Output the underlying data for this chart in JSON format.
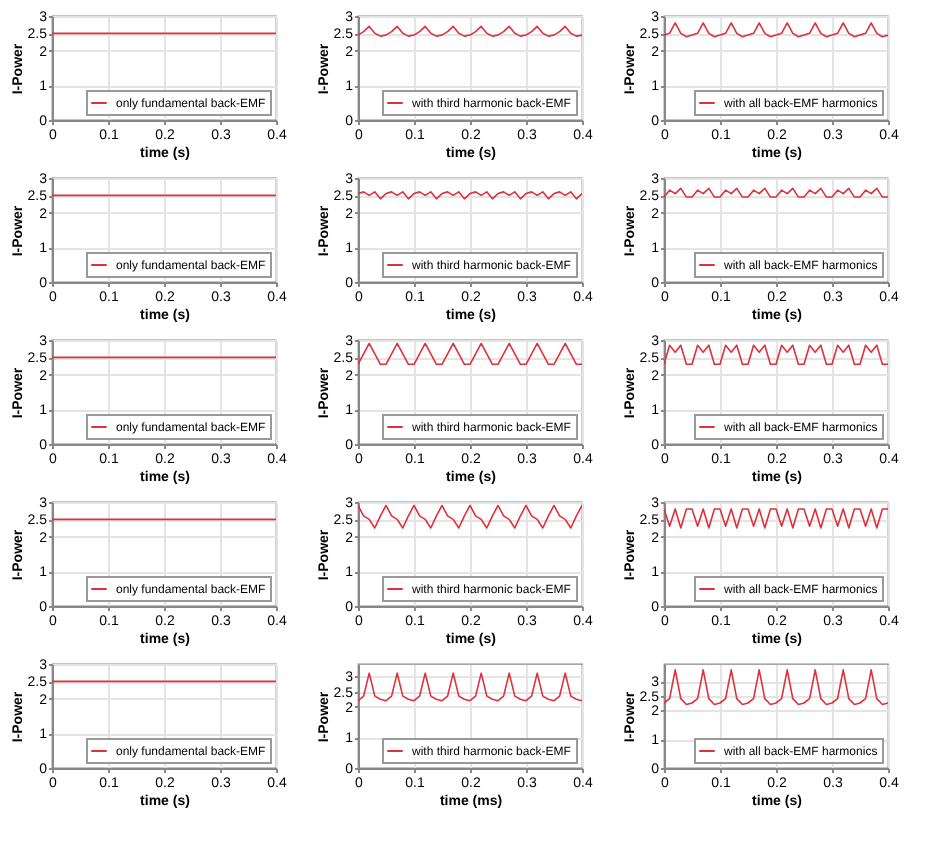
{
  "chart_data": [
    {
      "type": "line",
      "xlabel": "time (s)",
      "ylabel": "I-Power",
      "x": [
        0,
        0.4
      ],
      "xlim": [
        0,
        0.4
      ],
      "ylim": [
        0,
        3
      ],
      "xticks": [
        0,
        0.1,
        0.2,
        0.3,
        0.4
      ],
      "yticks": [
        0,
        1,
        2,
        2.5,
        3
      ],
      "grid": true,
      "legend": "bottom right",
      "series": [
        {
          "name": "only fundamental back-EMF",
          "color": "#e0303a",
          "values": [
            2.5,
            2.5
          ]
        }
      ]
    },
    {
      "type": "line",
      "xlabel": "time (s)",
      "ylabel": "I-Power",
      "x": [
        0,
        0.01,
        0.02,
        0.03,
        0.04,
        0.05,
        0.06,
        0.07,
        0.08,
        0.09,
        0.1,
        0.11,
        0.12,
        0.13,
        0.14,
        0.15,
        0.16,
        0.17,
        0.18,
        0.19,
        0.2,
        0.21,
        0.22,
        0.23,
        0.24,
        0.25,
        0.26,
        0.27,
        0.28,
        0.29,
        0.3,
        0.31,
        0.32,
        0.33,
        0.34,
        0.35,
        0.36,
        0.37,
        0.38,
        0.39,
        0.4
      ],
      "xlim": [
        0,
        0.4
      ],
      "ylim": [
        0,
        3
      ],
      "xticks": [
        0,
        0.1,
        0.2,
        0.3,
        0.4
      ],
      "yticks": [
        0,
        1,
        2,
        2.5,
        3
      ],
      "grid": true,
      "legend": "bottom right",
      "series": [
        {
          "name": "with third harmonic back-EMF",
          "color": "#e0303a",
          "values": [
            2.45,
            2.55,
            2.7,
            2.5,
            2.42,
            2.45,
            2.55,
            2.7,
            2.5,
            2.42,
            2.45,
            2.55,
            2.7,
            2.5,
            2.42,
            2.45,
            2.55,
            2.7,
            2.5,
            2.42,
            2.45,
            2.55,
            2.7,
            2.5,
            2.42,
            2.45,
            2.55,
            2.7,
            2.5,
            2.42,
            2.45,
            2.55,
            2.7,
            2.5,
            2.42,
            2.45,
            2.55,
            2.7,
            2.5,
            2.42,
            2.45
          ]
        }
      ]
    },
    {
      "type": "line",
      "xlabel": "time (s)",
      "ylabel": "I-Power",
      "x": [
        0,
        0.01,
        0.02,
        0.03,
        0.04,
        0.05,
        0.06,
        0.07,
        0.08,
        0.09,
        0.1,
        0.11,
        0.12,
        0.13,
        0.14,
        0.15,
        0.16,
        0.17,
        0.18,
        0.19,
        0.2,
        0.21,
        0.22,
        0.23,
        0.24,
        0.25,
        0.26,
        0.27,
        0.28,
        0.29,
        0.3,
        0.31,
        0.32,
        0.33,
        0.34,
        0.35,
        0.36,
        0.37,
        0.38,
        0.39,
        0.4
      ],
      "xlim": [
        0,
        0.4
      ],
      "ylim": [
        0,
        3
      ],
      "xticks": [
        0,
        0.1,
        0.2,
        0.3,
        0.4
      ],
      "yticks": [
        0,
        1,
        2,
        2.5,
        3
      ],
      "grid": true,
      "legend": "bottom right",
      "series": [
        {
          "name": "with all back-EMF harmonics",
          "color": "#e0303a",
          "values": [
            2.45,
            2.5,
            2.8,
            2.5,
            2.4,
            2.45,
            2.5,
            2.8,
            2.5,
            2.4,
            2.45,
            2.5,
            2.8,
            2.5,
            2.4,
            2.45,
            2.5,
            2.8,
            2.5,
            2.4,
            2.45,
            2.5,
            2.8,
            2.5,
            2.4,
            2.45,
            2.5,
            2.8,
            2.5,
            2.4,
            2.45,
            2.5,
            2.8,
            2.5,
            2.4,
            2.45,
            2.5,
            2.8,
            2.5,
            2.4,
            2.45
          ]
        }
      ]
    },
    {
      "type": "line",
      "xlabel": "time (s)",
      "ylabel": "I-Power",
      "x": [
        0,
        0.4
      ],
      "xlim": [
        0,
        0.4
      ],
      "ylim": [
        0,
        3
      ],
      "xticks": [
        0,
        0.1,
        0.2,
        0.3,
        0.4
      ],
      "yticks": [
        0,
        1,
        2,
        2.5,
        3
      ],
      "grid": true,
      "legend": "bottom right",
      "series": [
        {
          "name": "only fundamental back-EMF",
          "color": "#e0303a",
          "values": [
            2.5,
            2.5
          ]
        }
      ]
    },
    {
      "type": "line",
      "xlabel": "time (s)",
      "ylabel": "I-Power",
      "x": [
        0,
        0.01,
        0.02,
        0.03,
        0.04,
        0.05,
        0.06,
        0.07,
        0.08,
        0.09,
        0.1,
        0.11,
        0.12,
        0.13,
        0.14,
        0.15,
        0.16,
        0.17,
        0.18,
        0.19,
        0.2,
        0.21,
        0.22,
        0.23,
        0.24,
        0.25,
        0.26,
        0.27,
        0.28,
        0.29,
        0.3,
        0.31,
        0.32,
        0.33,
        0.34,
        0.35,
        0.36,
        0.37,
        0.38,
        0.39,
        0.4
      ],
      "xlim": [
        0,
        0.4
      ],
      "ylim": [
        0,
        3
      ],
      "xticks": [
        0,
        0.1,
        0.2,
        0.3,
        0.4
      ],
      "yticks": [
        0,
        1,
        2,
        2.5,
        3
      ],
      "grid": true,
      "legend": "bottom right",
      "series": [
        {
          "name": "with third harmonic back-EMF",
          "color": "#e0303a",
          "values": [
            2.55,
            2.6,
            2.5,
            2.6,
            2.4,
            2.55,
            2.6,
            2.5,
            2.6,
            2.4,
            2.55,
            2.6,
            2.5,
            2.6,
            2.4,
            2.55,
            2.6,
            2.5,
            2.6,
            2.4,
            2.55,
            2.6,
            2.5,
            2.6,
            2.4,
            2.55,
            2.6,
            2.5,
            2.6,
            2.4,
            2.55,
            2.6,
            2.5,
            2.6,
            2.4,
            2.55,
            2.6,
            2.5,
            2.6,
            2.4,
            2.55
          ]
        }
      ]
    },
    {
      "type": "line",
      "xlabel": "time (s)",
      "ylabel": "I-Power",
      "x": [
        0,
        0.01,
        0.02,
        0.03,
        0.04,
        0.05,
        0.06,
        0.07,
        0.08,
        0.09,
        0.1,
        0.11,
        0.12,
        0.13,
        0.14,
        0.15,
        0.16,
        0.17,
        0.18,
        0.19,
        0.2,
        0.21,
        0.22,
        0.23,
        0.24,
        0.25,
        0.26,
        0.27,
        0.28,
        0.29,
        0.3,
        0.31,
        0.32,
        0.33,
        0.34,
        0.35,
        0.36,
        0.37,
        0.38,
        0.39,
        0.4
      ],
      "xlim": [
        0,
        0.4
      ],
      "ylim": [
        0,
        3
      ],
      "xticks": [
        0,
        0.1,
        0.2,
        0.3,
        0.4
      ],
      "yticks": [
        0,
        1,
        2,
        2.5,
        3
      ],
      "grid": true,
      "legend": "bottom right",
      "series": [
        {
          "name": "with all back-EMF harmonics",
          "color": "#e0303a",
          "values": [
            2.45,
            2.65,
            2.55,
            2.7,
            2.45,
            2.45,
            2.65,
            2.55,
            2.7,
            2.45,
            2.45,
            2.65,
            2.55,
            2.7,
            2.45,
            2.45,
            2.65,
            2.55,
            2.7,
            2.45,
            2.45,
            2.65,
            2.55,
            2.7,
            2.45,
            2.45,
            2.65,
            2.55,
            2.7,
            2.45,
            2.45,
            2.65,
            2.55,
            2.7,
            2.45,
            2.45,
            2.65,
            2.55,
            2.7,
            2.45,
            2.45
          ]
        }
      ]
    },
    {
      "type": "line",
      "xlabel": "time (s)",
      "ylabel": "I-Power",
      "x": [
        0,
        0.4
      ],
      "xlim": [
        0,
        0.4
      ],
      "ylim": [
        0,
        3
      ],
      "xticks": [
        0,
        0.1,
        0.2,
        0.3,
        0.4
      ],
      "yticks": [
        0,
        1,
        2,
        2.5,
        3
      ],
      "grid": true,
      "legend": "bottom right",
      "series": [
        {
          "name": "only fundamental back-EMF",
          "color": "#e0303a",
          "values": [
            2.5,
            2.5
          ]
        }
      ]
    },
    {
      "type": "line",
      "xlabel": "time (s)",
      "ylabel": "I-Power",
      "x": [
        0,
        0.01,
        0.02,
        0.03,
        0.04,
        0.05,
        0.06,
        0.07,
        0.08,
        0.09,
        0.1,
        0.11,
        0.12,
        0.13,
        0.14,
        0.15,
        0.16,
        0.17,
        0.18,
        0.19,
        0.2,
        0.21,
        0.22,
        0.23,
        0.24,
        0.25,
        0.26,
        0.27,
        0.28,
        0.29,
        0.3,
        0.31,
        0.32,
        0.33,
        0.34,
        0.35,
        0.36,
        0.37,
        0.38,
        0.39,
        0.4
      ],
      "xlim": [
        0,
        0.4
      ],
      "ylim": [
        0,
        3
      ],
      "xticks": [
        0,
        0.1,
        0.2,
        0.3,
        0.4
      ],
      "yticks": [
        0,
        1,
        2,
        2.5,
        3
      ],
      "grid": true,
      "legend": "bottom right",
      "series": [
        {
          "name": "with third harmonic back-EMF",
          "color": "#e0303a",
          "values": [
            2.3,
            2.6,
            2.9,
            2.6,
            2.3,
            2.3,
            2.6,
            2.9,
            2.6,
            2.3,
            2.3,
            2.6,
            2.9,
            2.6,
            2.3,
            2.3,
            2.6,
            2.9,
            2.6,
            2.3,
            2.3,
            2.6,
            2.9,
            2.6,
            2.3,
            2.3,
            2.6,
            2.9,
            2.6,
            2.3,
            2.3,
            2.6,
            2.9,
            2.6,
            2.3,
            2.3,
            2.6,
            2.9,
            2.6,
            2.3,
            2.3
          ]
        }
      ]
    },
    {
      "type": "line",
      "xlabel": "time (s)",
      "ylabel": "I-Power",
      "x": [
        0,
        0.01,
        0.02,
        0.03,
        0.04,
        0.05,
        0.06,
        0.07,
        0.08,
        0.09,
        0.1,
        0.11,
        0.12,
        0.13,
        0.14,
        0.15,
        0.16,
        0.17,
        0.18,
        0.19,
        0.2,
        0.21,
        0.22,
        0.23,
        0.24,
        0.25,
        0.26,
        0.27,
        0.28,
        0.29,
        0.3,
        0.31,
        0.32,
        0.33,
        0.34,
        0.35,
        0.36,
        0.37,
        0.38,
        0.39,
        0.4
      ],
      "xlim": [
        0,
        0.4
      ],
      "ylim": [
        0,
        3
      ],
      "xticks": [
        0,
        0.1,
        0.2,
        0.3,
        0.4
      ],
      "yticks": [
        0,
        1,
        2,
        2.5,
        3
      ],
      "grid": true,
      "legend": "bottom right",
      "series": [
        {
          "name": "with all back-EMF harmonics",
          "color": "#e0303a",
          "values": [
            2.3,
            2.85,
            2.65,
            2.85,
            2.3,
            2.3,
            2.85,
            2.65,
            2.85,
            2.3,
            2.3,
            2.85,
            2.65,
            2.85,
            2.3,
            2.3,
            2.85,
            2.65,
            2.85,
            2.3,
            2.3,
            2.85,
            2.65,
            2.85,
            2.3,
            2.3,
            2.85,
            2.65,
            2.85,
            2.3,
            2.3,
            2.85,
            2.65,
            2.85,
            2.3,
            2.3,
            2.85,
            2.65,
            2.85,
            2.3,
            2.3
          ]
        }
      ]
    },
    {
      "type": "line",
      "xlabel": "time (s)",
      "ylabel": "I-Power",
      "x": [
        0,
        0.4
      ],
      "xlim": [
        0,
        0.4
      ],
      "ylim": [
        0,
        3
      ],
      "xticks": [
        0,
        0.1,
        0.2,
        0.3,
        0.4
      ],
      "yticks": [
        0,
        1,
        2,
        2.5,
        3
      ],
      "grid": true,
      "legend": "bottom right",
      "series": [
        {
          "name": "only fundamental back-EMF",
          "color": "#e0303a",
          "values": [
            2.5,
            2.5
          ]
        }
      ]
    },
    {
      "type": "line",
      "xlabel": "time (s)",
      "ylabel": "I-Power",
      "x": [
        0,
        0.01,
        0.02,
        0.03,
        0.04,
        0.05,
        0.06,
        0.07,
        0.08,
        0.09,
        0.1,
        0.11,
        0.12,
        0.13,
        0.14,
        0.15,
        0.16,
        0.17,
        0.18,
        0.19,
        0.2,
        0.21,
        0.22,
        0.23,
        0.24,
        0.25,
        0.26,
        0.27,
        0.28,
        0.29,
        0.3,
        0.31,
        0.32,
        0.33,
        0.34,
        0.35,
        0.36,
        0.37,
        0.38,
        0.39,
        0.4
      ],
      "xlim": [
        0,
        0.4
      ],
      "ylim": [
        0,
        3
      ],
      "xticks": [
        0,
        0.1,
        0.2,
        0.3,
        0.4
      ],
      "yticks": [
        0,
        1,
        2,
        2.5,
        3
      ],
      "grid": true,
      "legend": "bottom right",
      "series": [
        {
          "name": "with third harmonic back-EMF",
          "color": "#e0303a",
          "values": [
            2.9,
            2.6,
            2.5,
            2.25,
            2.6,
            2.9,
            2.6,
            2.5,
            2.25,
            2.6,
            2.9,
            2.6,
            2.5,
            2.25,
            2.6,
            2.9,
            2.6,
            2.5,
            2.25,
            2.6,
            2.9,
            2.6,
            2.5,
            2.25,
            2.6,
            2.9,
            2.6,
            2.5,
            2.25,
            2.6,
            2.9,
            2.6,
            2.5,
            2.25,
            2.6,
            2.9,
            2.6,
            2.5,
            2.25,
            2.6,
            2.9
          ]
        }
      ]
    },
    {
      "type": "line",
      "xlabel": "time (s)",
      "ylabel": "I-Power",
      "x": [
        0,
        0.01,
        0.02,
        0.03,
        0.04,
        0.05,
        0.06,
        0.07,
        0.08,
        0.09,
        0.1,
        0.11,
        0.12,
        0.13,
        0.14,
        0.15,
        0.16,
        0.17,
        0.18,
        0.19,
        0.2,
        0.21,
        0.22,
        0.23,
        0.24,
        0.25,
        0.26,
        0.27,
        0.28,
        0.29,
        0.3,
        0.31,
        0.32,
        0.33,
        0.34,
        0.35,
        0.36,
        0.37,
        0.38,
        0.39,
        0.4
      ],
      "xlim": [
        0,
        0.4
      ],
      "ylim": [
        0,
        3
      ],
      "xticks": [
        0,
        0.1,
        0.2,
        0.3,
        0.4
      ],
      "yticks": [
        0,
        1,
        2,
        2.5,
        3
      ],
      "grid": true,
      "legend": "bottom right",
      "series": [
        {
          "name": "with all back-EMF harmonics",
          "color": "#e0303a",
          "values": [
            2.8,
            2.3,
            2.8,
            2.25,
            2.8,
            2.8,
            2.3,
            2.8,
            2.25,
            2.8,
            2.8,
            2.3,
            2.8,
            2.25,
            2.8,
            2.8,
            2.3,
            2.8,
            2.25,
            2.8,
            2.8,
            2.3,
            2.8,
            2.25,
            2.8,
            2.8,
            2.3,
            2.8,
            2.25,
            2.8,
            2.8,
            2.3,
            2.8,
            2.25,
            2.8,
            2.8,
            2.3,
            2.8,
            2.25,
            2.8,
            2.8
          ]
        }
      ]
    },
    {
      "type": "line",
      "xlabel": "time (s)",
      "ylabel": "I-Power",
      "x": [
        0,
        0.4
      ],
      "xlim": [
        0,
        0.4
      ],
      "ylim": [
        0,
        3
      ],
      "xticks": [
        0,
        0.1,
        0.2,
        0.3,
        0.4
      ],
      "yticks": [
        0,
        1,
        2,
        2.5,
        3
      ],
      "grid": true,
      "legend": "bottom right",
      "series": [
        {
          "name": "only fundamental back-EMF",
          "color": "#e0303a",
          "values": [
            2.5,
            2.5
          ]
        }
      ]
    },
    {
      "type": "line",
      "xlabel": "time (ms)",
      "ylabel": "I-Power",
      "x": [
        0,
        0.01,
        0.02,
        0.03,
        0.04,
        0.05,
        0.06,
        0.07,
        0.08,
        0.09,
        0.1,
        0.11,
        0.12,
        0.13,
        0.14,
        0.15,
        0.16,
        0.17,
        0.18,
        0.19,
        0.2,
        0.21,
        0.22,
        0.23,
        0.24,
        0.25,
        0.26,
        0.27,
        0.28,
        0.29,
        0.3,
        0.31,
        0.32,
        0.33,
        0.34,
        0.35,
        0.36,
        0.37,
        0.38,
        0.39,
        0.4
      ],
      "xlim": [
        0,
        0.4
      ],
      "ylim": [
        0,
        3.4
      ],
      "xticks": [
        0,
        0.1,
        0.2,
        0.3,
        0.4
      ],
      "yticks": [
        0,
        1,
        2,
        2.5,
        3
      ],
      "grid": true,
      "legend": "bottom right",
      "series": [
        {
          "name": "with third harmonic back-EMF",
          "color": "#e0303a",
          "values": [
            2.2,
            2.35,
            3.1,
            2.35,
            2.25,
            2.2,
            2.35,
            3.1,
            2.35,
            2.25,
            2.2,
            2.35,
            3.1,
            2.35,
            2.25,
            2.2,
            2.35,
            3.1,
            2.35,
            2.25,
            2.2,
            2.35,
            3.1,
            2.35,
            2.25,
            2.2,
            2.35,
            3.1,
            2.35,
            2.25,
            2.2,
            2.35,
            3.1,
            2.35,
            2.25,
            2.2,
            2.35,
            3.1,
            2.35,
            2.25,
            2.2
          ]
        }
      ]
    },
    {
      "type": "line",
      "xlabel": "time (s)",
      "ylabel": "I-Power",
      "x": [
        0,
        0.01,
        0.02,
        0.03,
        0.04,
        0.05,
        0.06,
        0.07,
        0.08,
        0.09,
        0.1,
        0.11,
        0.12,
        0.13,
        0.14,
        0.15,
        0.16,
        0.17,
        0.18,
        0.19,
        0.2,
        0.21,
        0.22,
        0.23,
        0.24,
        0.25,
        0.26,
        0.27,
        0.28,
        0.29,
        0.3,
        0.31,
        0.32,
        0.33,
        0.34,
        0.35,
        0.36,
        0.37,
        0.38,
        0.39,
        0.4
      ],
      "xlim": [
        0,
        0.4
      ],
      "ylim": [
        0,
        3.6
      ],
      "xticks": [
        0,
        0.1,
        0.2,
        0.3,
        0.4
      ],
      "yticks": [
        0,
        1,
        2,
        2.5,
        3
      ],
      "grid": true,
      "legend": "bottom right",
      "series": [
        {
          "name": "with all back-EMF harmonics",
          "color": "#e0303a",
          "values": [
            2.25,
            2.4,
            3.4,
            2.4,
            2.2,
            2.25,
            2.4,
            3.4,
            2.4,
            2.2,
            2.25,
            2.4,
            3.4,
            2.4,
            2.2,
            2.25,
            2.4,
            3.4,
            2.4,
            2.2,
            2.25,
            2.4,
            3.4,
            2.4,
            2.2,
            2.25,
            2.4,
            3.4,
            2.4,
            2.2,
            2.25,
            2.4,
            3.4,
            2.4,
            2.2,
            2.25,
            2.4,
            3.4,
            2.4,
            2.2,
            2.25
          ]
        }
      ]
    }
  ]
}
